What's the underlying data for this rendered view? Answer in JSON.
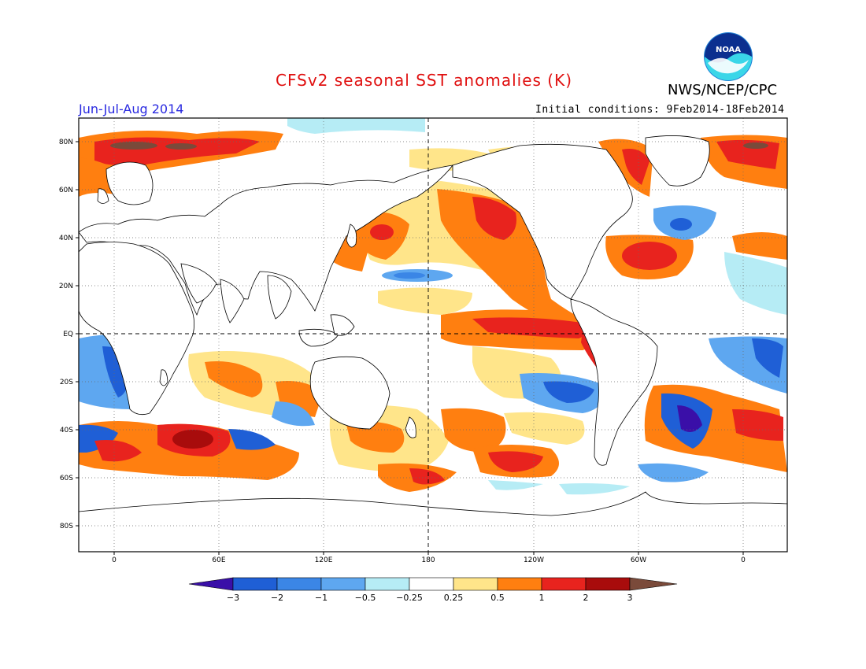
{
  "title": "CFSv2 seasonal SST anomalies (K)",
  "agency": "NWS/NCEP/CPC",
  "logo_text": "NOAA",
  "season": "Jun-Jul-Aug 2014",
  "initial_conditions": "Initial conditions: 9Feb2014-18Feb2014",
  "lat_labels": [
    "80N",
    "60N",
    "40N",
    "20N",
    "EQ",
    "20S",
    "40S",
    "60S",
    "80S"
  ],
  "lon_labels": [
    "0",
    "60E",
    "120E",
    "180",
    "120W",
    "60W",
    "0"
  ],
  "colorbar": {
    "ticks": [
      "−3",
      "−2",
      "−1",
      "−0.5",
      "−0.25",
      "0.25",
      "0.5",
      "1",
      "2",
      "3"
    ],
    "colors": [
      "#3a0fa8",
      "#1f5fd6",
      "#3b86e6",
      "#5ea7f0",
      "#b6ecf5",
      "#ffffff",
      "#ffe58a",
      "#ff7f10",
      "#e8231e",
      "#a80c0c",
      "#7a4a3a"
    ]
  },
  "map": {
    "lon_range": [
      -20,
      20
    ],
    "lat_range": [
      -90,
      90
    ],
    "colors": {
      "land": "#ffffff",
      "coast": "#000000",
      "grid": "#6a6a6a",
      "frame": "#000000"
    }
  }
}
